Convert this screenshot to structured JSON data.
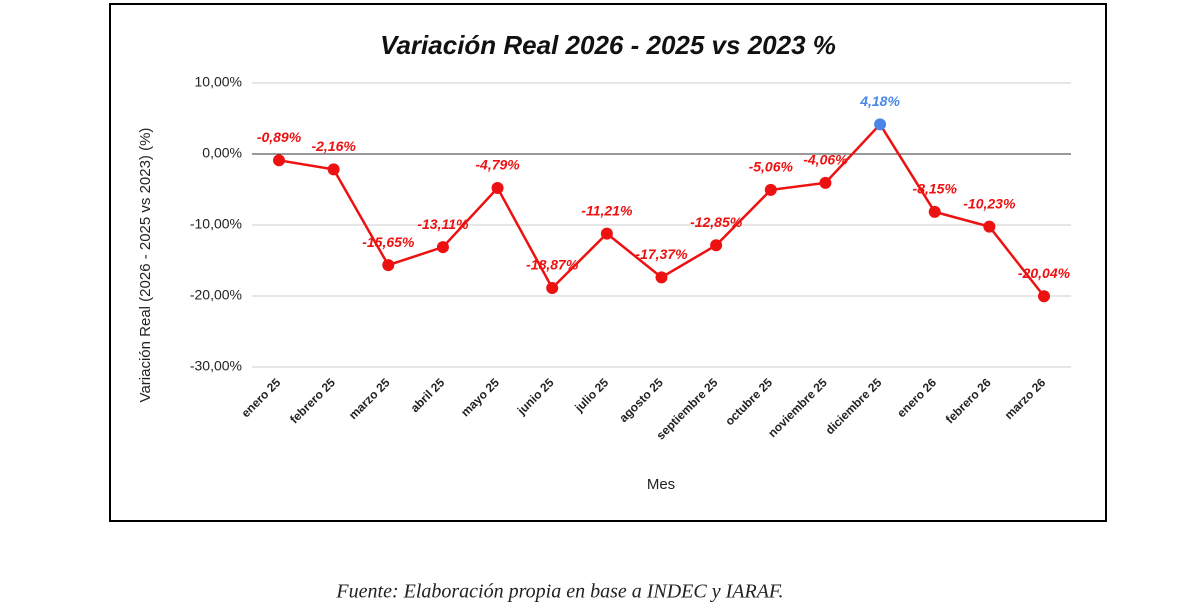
{
  "chart_data": {
    "type": "line",
    "title": "Variación Real 2026 - 2025 vs 2023 %",
    "x_label": "Mes",
    "y_label": "Variación Real (2026 - 2025 vs 2023) (%)",
    "categories": [
      "enero 25",
      "febrero 25",
      "marzo 25",
      "abril 25",
      "mayo 25",
      "junio 25",
      "julio 25",
      "agosto 25",
      "septiembre 25",
      "octubre 25",
      "noviembre 25",
      "diciembre 25",
      "enero 26",
      "febrero 26",
      "marzo 26"
    ],
    "values": [
      -0.89,
      -2.16,
      -15.65,
      -13.11,
      -4.79,
      -18.87,
      -11.21,
      -17.37,
      -12.85,
      -5.06,
      -4.06,
      4.18,
      -8.15,
      -10.23,
      -20.04
    ],
    "value_labels": [
      "-0,89%",
      "-2,16%",
      "-15,65%",
      "-13,11%",
      "-4,79%",
      "-18,87%",
      "-11,21%",
      "-17,37%",
      "-12,85%",
      "-5,06%",
      "-4,06%",
      "4,18%",
      "-8,15%",
      "-10,23%",
      "-20,04%"
    ],
    "color": "#ee1111",
    "point_colors": [
      "#ee1111",
      "#ee1111",
      "#ee1111",
      "#ee1111",
      "#ee1111",
      "#ee1111",
      "#ee1111",
      "#ee1111",
      "#ee1111",
      "#ee1111",
      "#ee1111",
      "#4a86e8",
      "#ee1111",
      "#ee1111",
      "#ee1111"
    ],
    "ylim": [
      -30,
      10
    ],
    "yticks": [
      {
        "value": -30,
        "label": "-30,00%"
      },
      {
        "value": -20,
        "label": "-20,00%"
      },
      {
        "value": -10,
        "label": "-10,00%"
      },
      {
        "value": 0,
        "label": "0,00%"
      },
      {
        "value": 10,
        "label": "10,00%"
      }
    ],
    "grid": true,
    "zero_line": true
  },
  "caption": "Fuente: Elaboración propia en base a INDEC y IARAF."
}
